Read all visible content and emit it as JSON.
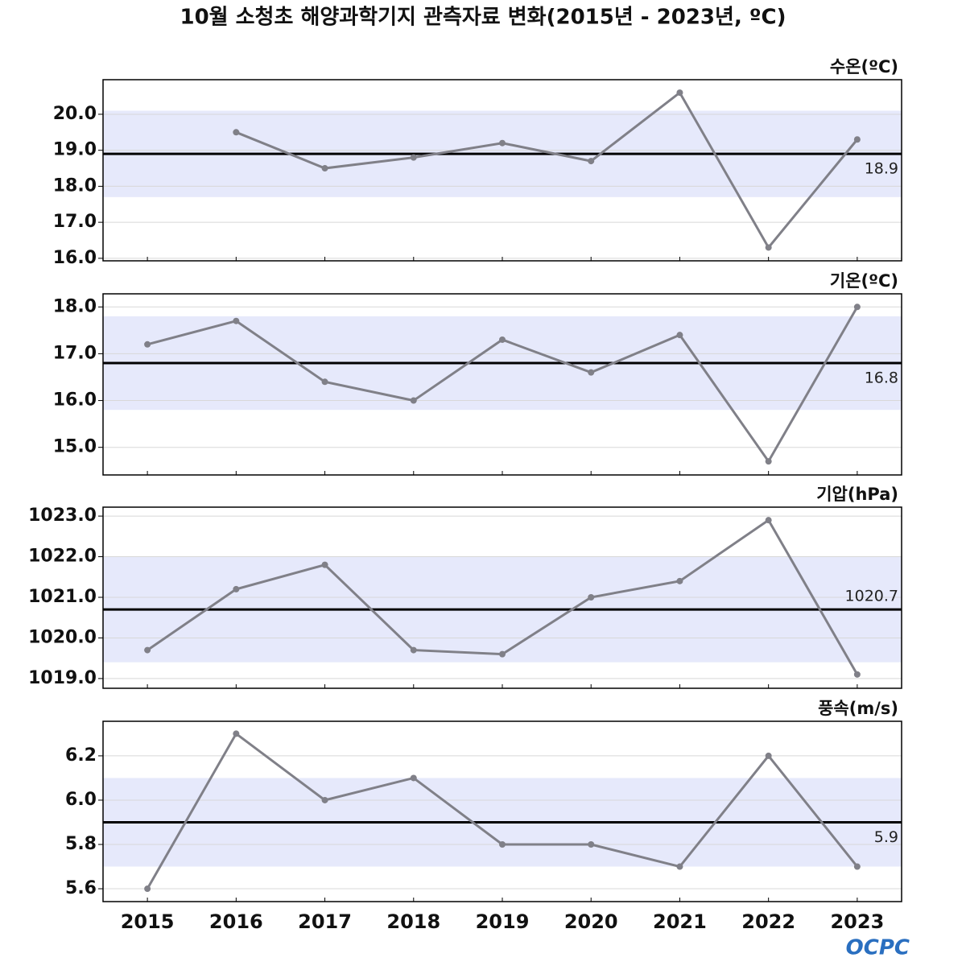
{
  "title": "10월 소청초 해양과학기지 관측자료 변화(2015년 - 2023년, ºC)",
  "logo": "OCPC",
  "chart_data": [
    {
      "type": "line",
      "title": "수온(ºC)",
      "series": [
        {
          "name": "수온",
          "color": "#808088",
          "values": [
            null,
            19.5,
            18.5,
            18.8,
            19.2,
            18.7,
            20.6,
            16.3,
            19.3
          ]
        }
      ],
      "mean": 18.9,
      "mean_label_position": "below",
      "band": [
        17.7,
        20.1
      ],
      "band_color": "#e6e9fb",
      "ylim": [
        15.93,
        20.96
      ],
      "yticks": [
        {
          "value": 16,
          "label": "16.0"
        },
        {
          "value": 17,
          "label": "17.0"
        },
        {
          "value": 18,
          "label": "18.0"
        },
        {
          "value": 19,
          "label": "19.0"
        },
        {
          "value": 20,
          "label": "20.0"
        }
      ],
      "grid": true
    },
    {
      "type": "line",
      "title": "기온(ºC)",
      "series": [
        {
          "name": "기온",
          "color": "#808088",
          "values": [
            17.2,
            17.7,
            16.4,
            16.0,
            17.3,
            16.6,
            17.4,
            14.7,
            18.0
          ]
        }
      ],
      "mean": 16.8,
      "mean_label_position": "below",
      "band": [
        15.8,
        17.8
      ],
      "band_color": "#e6e9fb",
      "ylim": [
        14.41,
        18.28
      ],
      "yticks": [
        {
          "value": 15,
          "label": "15.0"
        },
        {
          "value": 16,
          "label": "16.0"
        },
        {
          "value": 17,
          "label": "17.0"
        },
        {
          "value": 18,
          "label": "18.0"
        }
      ],
      "grid": true
    },
    {
      "type": "line",
      "title": "기압(hPa)",
      "series": [
        {
          "name": "기압",
          "color": "#808088",
          "values": [
            1019.7,
            1021.2,
            1021.8,
            1019.7,
            1019.6,
            1021.0,
            1021.4,
            1022.9,
            1019.1
          ]
        }
      ],
      "mean": 1020.7,
      "mean_label_position": "above",
      "band": [
        1019.4,
        1022.0
      ],
      "band_color": "#e6e9fb",
      "ylim": [
        1018.76,
        1023.22
      ],
      "yticks": [
        {
          "value": 1019,
          "label": "1019.0"
        },
        {
          "value": 1020,
          "label": "1020.0"
        },
        {
          "value": 1021,
          "label": "1021.0"
        },
        {
          "value": 1022,
          "label": "1022.0"
        },
        {
          "value": 1023,
          "label": "1023.0"
        }
      ],
      "grid": true
    },
    {
      "type": "line",
      "title": "풍속(m/s)",
      "categories": [
        "2015",
        "2016",
        "2017",
        "2018",
        "2019",
        "2020",
        "2021",
        "2022",
        "2023"
      ],
      "series": [
        {
          "name": "풍속",
          "color": "#808088",
          "values": [
            5.6,
            6.3,
            6.0,
            6.1,
            5.8,
            5.8,
            5.7,
            6.2,
            5.7
          ]
        }
      ],
      "mean": 5.9,
      "mean_label_position": "below",
      "band": [
        5.7,
        6.1
      ],
      "band_color": "#e6e9fb",
      "ylim": [
        5.542,
        6.356
      ],
      "yticks": [
        {
          "value": 5.6,
          "label": "5.6"
        },
        {
          "value": 5.8,
          "label": "5.8"
        },
        {
          "value": 6.0,
          "label": "6.0"
        },
        {
          "value": 6.2,
          "label": "6.2"
        }
      ],
      "grid": true
    }
  ]
}
